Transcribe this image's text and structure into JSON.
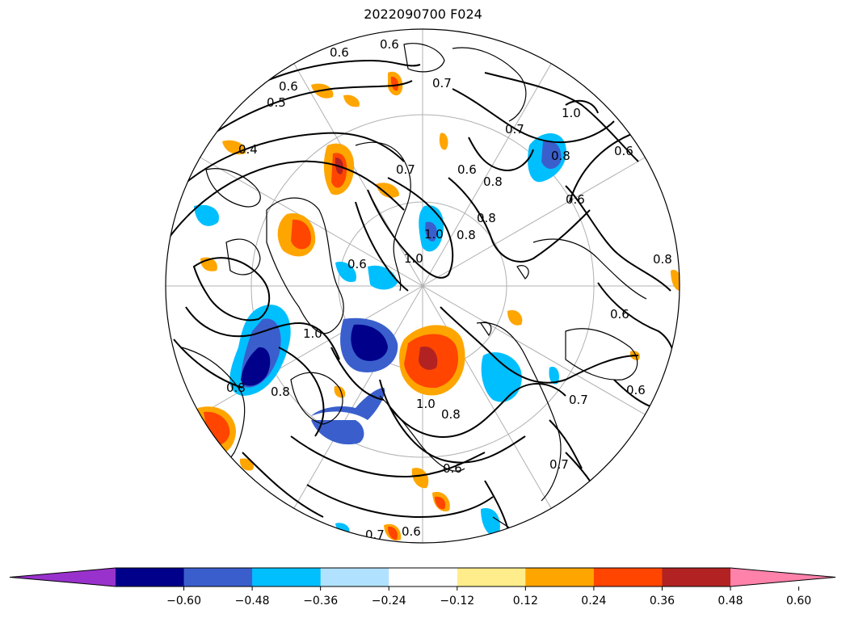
{
  "title": "2022090700 F024",
  "colorbar": {
    "colors": [
      "#9932cc",
      "#00008b",
      "#3a5fcd",
      "#00bfff",
      "#b0e2ff",
      "#ffffff",
      "#ffec8b",
      "#ffa500",
      "#ff4500",
      "#b22222",
      "#ff82ab"
    ],
    "ticks": [
      "−0.60",
      "−0.48",
      "−0.36",
      "−0.24",
      "−0.12",
      "0.12",
      "0.24",
      "0.36",
      "0.48",
      "0.60"
    ],
    "extend": "both"
  },
  "contour_labels": [
    "0.6",
    "0.6",
    "0.7",
    "0.6",
    "0.5",
    "0.4",
    "1.0",
    "0.8",
    "0.6",
    "0.7",
    "0.6",
    "0.8",
    "0.7",
    "0.6",
    "1.0",
    "0.8",
    "1.0",
    "0.8",
    "0.6",
    "0.8",
    "0.6",
    "1.0",
    "0.8",
    "0.7",
    "0.6",
    "0.8",
    "1.0",
    "0.8",
    "0.7",
    "0.6",
    "0.7",
    "0.6"
  ],
  "map": {
    "projection": "north polar stereographic",
    "field": "shaded anomalies with black contour lines",
    "graticule": true,
    "coastlines": true
  }
}
